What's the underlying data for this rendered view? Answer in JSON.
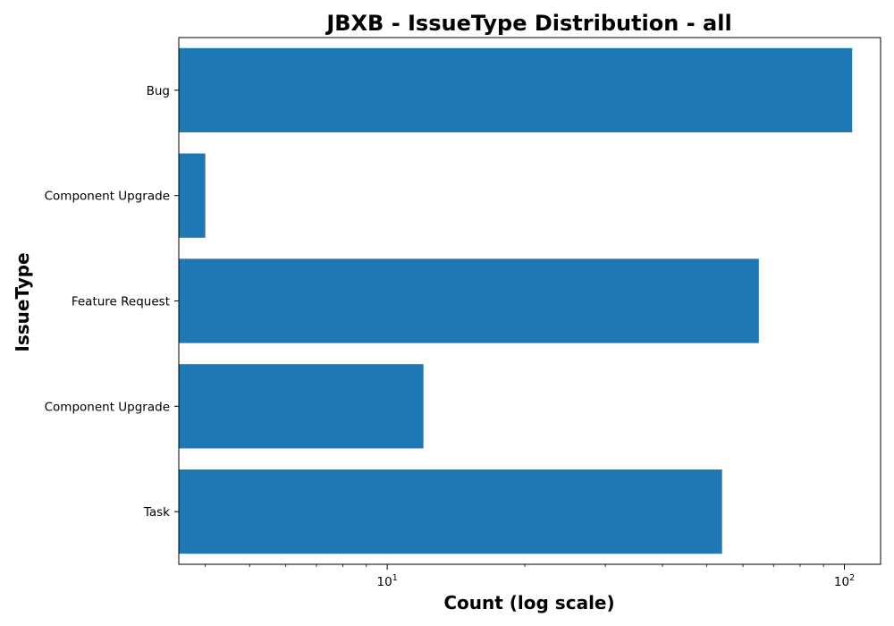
{
  "chart_data": {
    "type": "bar",
    "orientation": "horizontal",
    "title": "JBXB - IssueType Distribution - all",
    "xlabel": "Count (log scale)",
    "ylabel": "IssueType",
    "x_scale": "log",
    "xlim": [
      3.5,
      120
    ],
    "x_ticks": [
      {
        "value": 10,
        "base": "10",
        "exp": "1"
      },
      {
        "value": 100,
        "base": "10",
        "exp": "2"
      }
    ],
    "categories": [
      "Bug",
      "Component Upgrade",
      "Feature Request",
      "Component  Upgrade",
      "Task"
    ],
    "values": [
      104,
      4,
      65,
      12,
      54
    ],
    "bar_color": "#1f77b4",
    "grid": false,
    "legend": "none"
  }
}
